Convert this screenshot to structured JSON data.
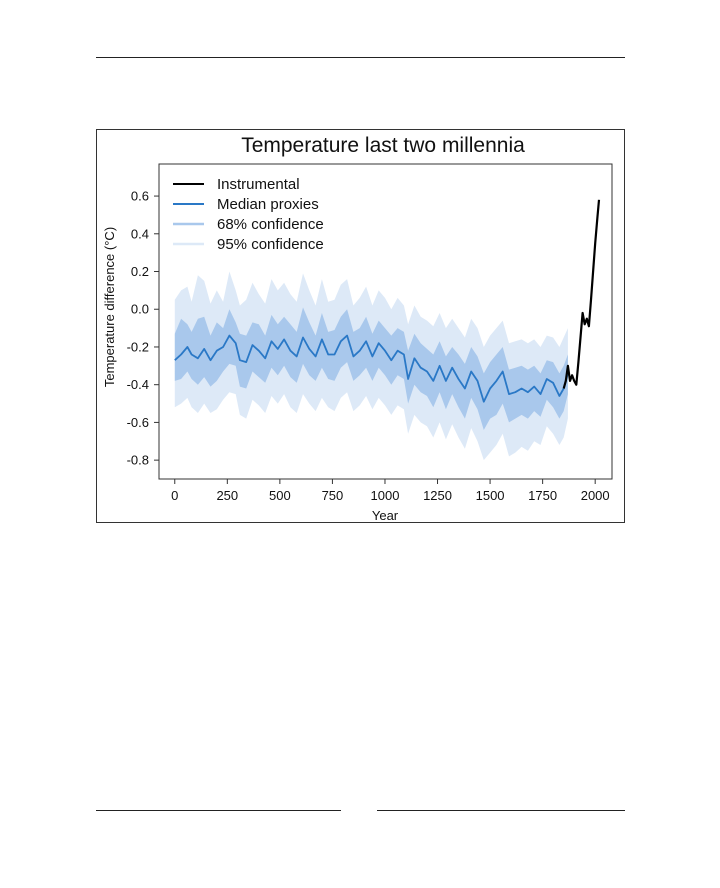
{
  "colors": {
    "instrumental": "#000000",
    "median": "#2a78c6",
    "band68": "#a9c8ec",
    "band95": "#dde9f7",
    "frame": "#333333"
  },
  "chart_data": {
    "type": "line",
    "title": "Temperature last two millennia",
    "xlabel": "Year",
    "ylabel": "Temperature difference (°C)",
    "xlim": [
      -75,
      2080
    ],
    "ylim": [
      -0.9,
      0.77
    ],
    "xticks": [
      0,
      250,
      500,
      750,
      1000,
      1250,
      1500,
      1750,
      2000
    ],
    "yticks": [
      0.6,
      0.4,
      0.2,
      0.0,
      -0.2,
      -0.4,
      -0.6,
      -0.8
    ],
    "ytick_labels": [
      "0.6",
      "0.4",
      "0.2",
      "0.0",
      "-0.2",
      "-0.4",
      "-0.6",
      "-0.8"
    ],
    "grid": false,
    "legend_position": "top-left",
    "legend": [
      {
        "name": "Instrumental",
        "kind": "line",
        "color": "#000000"
      },
      {
        "name": "Median proxies",
        "kind": "line",
        "color": "#2a78c6"
      },
      {
        "name": "68% confidence",
        "kind": "band",
        "color": "#a9c8ec"
      },
      {
        "name": "95% confidence",
        "kind": "band",
        "color": "#dde9f7"
      }
    ],
    "series": [
      {
        "name": "Median proxies",
        "x": [
          0,
          30,
          60,
          80,
          110,
          140,
          170,
          200,
          230,
          260,
          290,
          310,
          340,
          370,
          400,
          430,
          460,
          490,
          520,
          550,
          580,
          610,
          640,
          670,
          700,
          730,
          760,
          790,
          820,
          850,
          880,
          910,
          940,
          970,
          1000,
          1030,
          1060,
          1090,
          1110,
          1140,
          1170,
          1200,
          1230,
          1260,
          1290,
          1320,
          1350,
          1380,
          1410,
          1440,
          1470,
          1500,
          1530,
          1560,
          1590,
          1620,
          1650,
          1680,
          1710,
          1740,
          1770,
          1800,
          1830,
          1850,
          1870
        ],
        "y": [
          -0.27,
          -0.24,
          -0.2,
          -0.24,
          -0.26,
          -0.21,
          -0.27,
          -0.22,
          -0.2,
          -0.14,
          -0.18,
          -0.27,
          -0.28,
          -0.19,
          -0.22,
          -0.26,
          -0.17,
          -0.21,
          -0.16,
          -0.22,
          -0.25,
          -0.15,
          -0.21,
          -0.25,
          -0.16,
          -0.24,
          -0.24,
          -0.17,
          -0.14,
          -0.25,
          -0.22,
          -0.17,
          -0.25,
          -0.18,
          -0.22,
          -0.27,
          -0.22,
          -0.24,
          -0.37,
          -0.26,
          -0.31,
          -0.33,
          -0.38,
          -0.3,
          -0.38,
          -0.31,
          -0.37,
          -0.42,
          -0.33,
          -0.38,
          -0.49,
          -0.42,
          -0.38,
          -0.33,
          -0.45,
          -0.44,
          -0.42,
          -0.44,
          -0.41,
          -0.45,
          -0.37,
          -0.39,
          -0.46,
          -0.42,
          -0.34
        ]
      },
      {
        "name": "Instrumental",
        "x": [
          1850,
          1860,
          1870,
          1880,
          1890,
          1900,
          1910,
          1920,
          1930,
          1940,
          1950,
          1960,
          1970,
          1980,
          1990,
          2000,
          2010,
          2018
        ],
        "y": [
          -0.42,
          -0.38,
          -0.3,
          -0.38,
          -0.35,
          -0.38,
          -0.4,
          -0.28,
          -0.15,
          -0.02,
          -0.08,
          -0.05,
          -0.09,
          0.05,
          0.2,
          0.35,
          0.48,
          0.58
        ]
      },
      {
        "name": "68% confidence",
        "x": [
          0,
          30,
          60,
          80,
          110,
          140,
          170,
          200,
          230,
          260,
          290,
          310,
          340,
          370,
          400,
          430,
          460,
          490,
          520,
          550,
          580,
          610,
          640,
          670,
          700,
          730,
          760,
          790,
          820,
          850,
          880,
          910,
          940,
          970,
          1000,
          1030,
          1060,
          1090,
          1110,
          1140,
          1170,
          1200,
          1230,
          1260,
          1290,
          1320,
          1350,
          1380,
          1410,
          1440,
          1470,
          1500,
          1530,
          1560,
          1590,
          1620,
          1650,
          1680,
          1710,
          1740,
          1770,
          1800,
          1830,
          1850,
          1870
        ],
        "upper": [
          -0.13,
          -0.05,
          -0.08,
          -0.12,
          -0.05,
          -0.04,
          -0.14,
          -0.07,
          -0.1,
          0.0,
          -0.07,
          -0.13,
          -0.14,
          -0.07,
          -0.08,
          -0.14,
          -0.03,
          -0.08,
          -0.04,
          -0.08,
          -0.12,
          0.01,
          -0.07,
          -0.14,
          -0.02,
          -0.12,
          -0.11,
          -0.04,
          0.0,
          -0.12,
          -0.1,
          -0.04,
          -0.13,
          -0.06,
          -0.1,
          -0.14,
          -0.1,
          -0.12,
          -0.22,
          -0.13,
          -0.18,
          -0.21,
          -0.24,
          -0.17,
          -0.25,
          -0.2,
          -0.24,
          -0.29,
          -0.2,
          -0.25,
          -0.34,
          -0.28,
          -0.24,
          -0.2,
          -0.32,
          -0.31,
          -0.3,
          -0.32,
          -0.3,
          -0.34,
          -0.27,
          -0.28,
          -0.34,
          -0.3,
          -0.24
        ],
        "lower": [
          -0.38,
          -0.37,
          -0.33,
          -0.37,
          -0.4,
          -0.36,
          -0.41,
          -0.38,
          -0.33,
          -0.29,
          -0.3,
          -0.41,
          -0.42,
          -0.33,
          -0.36,
          -0.39,
          -0.31,
          -0.35,
          -0.3,
          -0.36,
          -0.39,
          -0.29,
          -0.35,
          -0.38,
          -0.31,
          -0.37,
          -0.38,
          -0.31,
          -0.28,
          -0.38,
          -0.35,
          -0.31,
          -0.38,
          -0.31,
          -0.35,
          -0.4,
          -0.35,
          -0.37,
          -0.5,
          -0.4,
          -0.44,
          -0.46,
          -0.52,
          -0.44,
          -0.53,
          -0.45,
          -0.52,
          -0.58,
          -0.47,
          -0.53,
          -0.64,
          -0.58,
          -0.56,
          -0.5,
          -0.6,
          -0.58,
          -0.56,
          -0.58,
          -0.54,
          -0.57,
          -0.48,
          -0.52,
          -0.58,
          -0.54,
          -0.45
        ]
      },
      {
        "name": "95% confidence",
        "x": [
          0,
          30,
          60,
          80,
          110,
          140,
          170,
          200,
          230,
          260,
          290,
          310,
          340,
          370,
          400,
          430,
          460,
          490,
          520,
          550,
          580,
          610,
          640,
          670,
          700,
          730,
          760,
          790,
          820,
          850,
          880,
          910,
          940,
          970,
          1000,
          1030,
          1060,
          1090,
          1110,
          1140,
          1170,
          1200,
          1230,
          1260,
          1290,
          1320,
          1350,
          1380,
          1410,
          1440,
          1470,
          1500,
          1530,
          1560,
          1590,
          1620,
          1650,
          1680,
          1710,
          1740,
          1770,
          1800,
          1830,
          1850,
          1870
        ],
        "upper": [
          0.05,
          0.1,
          0.12,
          0.04,
          0.18,
          0.15,
          0.03,
          0.1,
          0.04,
          0.2,
          0.1,
          0.02,
          0.05,
          0.14,
          0.08,
          0.03,
          0.16,
          0.1,
          0.14,
          0.08,
          0.04,
          0.19,
          0.1,
          0.02,
          0.16,
          0.04,
          0.05,
          0.13,
          0.16,
          0.02,
          0.06,
          0.12,
          0.02,
          0.1,
          0.06,
          0.0,
          0.06,
          0.02,
          -0.08,
          0.02,
          -0.04,
          -0.06,
          -0.09,
          -0.02,
          -0.1,
          -0.05,
          -0.1,
          -0.15,
          -0.05,
          -0.1,
          -0.2,
          -0.14,
          -0.1,
          -0.06,
          -0.18,
          -0.17,
          -0.16,
          -0.18,
          -0.16,
          -0.2,
          -0.14,
          -0.15,
          -0.2,
          -0.15,
          -0.1
        ],
        "lower": [
          -0.52,
          -0.5,
          -0.47,
          -0.52,
          -0.55,
          -0.5,
          -0.55,
          -0.53,
          -0.48,
          -0.44,
          -0.45,
          -0.56,
          -0.58,
          -0.48,
          -0.51,
          -0.55,
          -0.46,
          -0.5,
          -0.45,
          -0.52,
          -0.55,
          -0.45,
          -0.5,
          -0.54,
          -0.47,
          -0.52,
          -0.54,
          -0.47,
          -0.44,
          -0.54,
          -0.51,
          -0.46,
          -0.53,
          -0.47,
          -0.51,
          -0.56,
          -0.51,
          -0.53,
          -0.66,
          -0.56,
          -0.6,
          -0.62,
          -0.68,
          -0.6,
          -0.69,
          -0.61,
          -0.68,
          -0.74,
          -0.63,
          -0.7,
          -0.8,
          -0.76,
          -0.72,
          -0.66,
          -0.78,
          -0.76,
          -0.73,
          -0.75,
          -0.7,
          -0.72,
          -0.62,
          -0.66,
          -0.72,
          -0.68,
          -0.58
        ]
      }
    ]
  }
}
